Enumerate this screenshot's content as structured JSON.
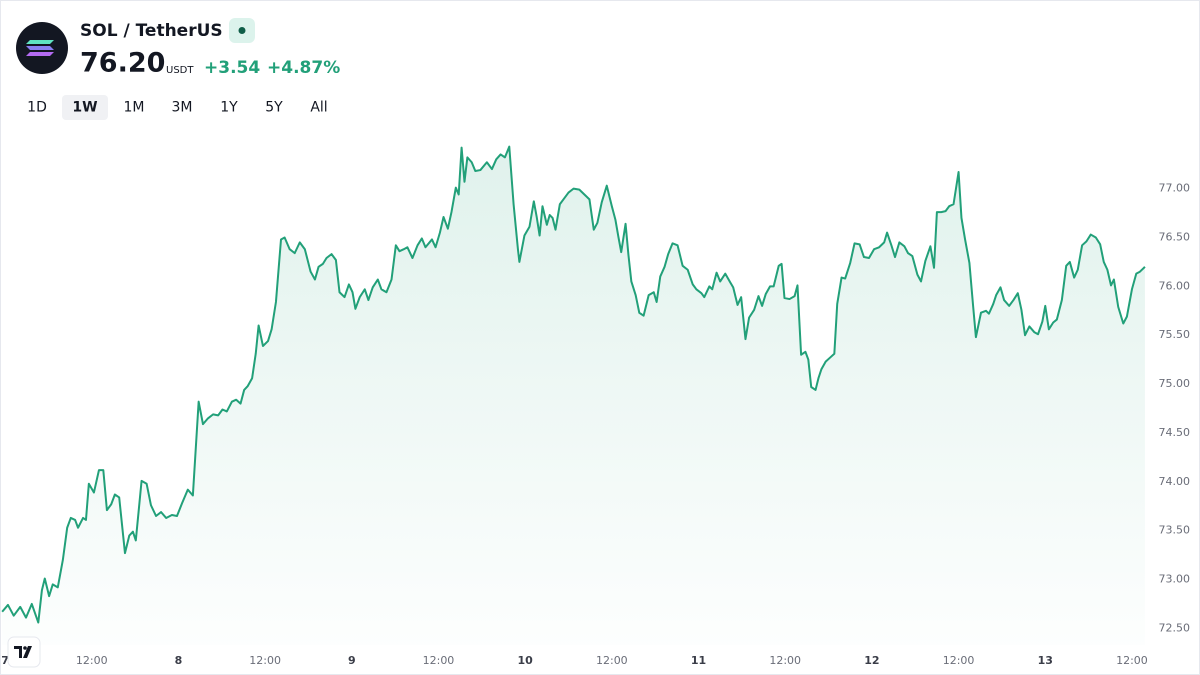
{
  "header": {
    "symbol": "SOL / TetherUS",
    "price": "76.20",
    "currency": "USDT",
    "change": "+3.54",
    "change_percent": "+4.87%"
  },
  "ranges": [
    "1D",
    "1W",
    "1M",
    "3M",
    "1Y",
    "5Y",
    "All"
  ],
  "selected_range": 1,
  "chart_data": {
    "type": "line",
    "x": [
      -0.4,
      0.4,
      1.2,
      2.1,
      2.9,
      3.7,
      4.6,
      5.1,
      5.5,
      6.1,
      6.6,
      7.3,
      8.0,
      8.6,
      9.1,
      9.7,
      10.1,
      10.8,
      11.2,
      11.6,
      12.3,
      13.0,
      13.6,
      14.1,
      14.7,
      15.2,
      15.8,
      16.6,
      17.2,
      17.7,
      18.1,
      18.9,
      19.6,
      20.2,
      20.9,
      21.6,
      22.3,
      23.1,
      23.8,
      24.5,
      25.3,
      26.0,
      26.8,
      27.4,
      28.1,
      28.8,
      29.5,
      30.1,
      30.7,
      31.4,
      32.0,
      32.6,
      33.1,
      33.6,
      34.2,
      34.7,
      35.1,
      35.7,
      36.4,
      36.9,
      37.5,
      38.2,
      38.7,
      39.4,
      40.1,
      40.8,
      41.5,
      42.3,
      42.9,
      43.4,
      44.0,
      44.5,
      45.2,
      45.8,
      46.3,
      47.0,
      47.6,
      48.1,
      48.5,
      49.1,
      49.8,
      50.3,
      50.9,
      51.6,
      52.1,
      52.8,
      53.5,
      54.1,
      54.6,
      55.2,
      55.7,
      56.4,
      57.1,
      57.7,
      58.2,
      59.1,
      59.6,
      60.2,
      60.7,
      61.3,
      61.8,
      62.4,
      62.8,
      63.2,
      63.6,
      64.0,
      64.6,
      65.1,
      65.8,
      66.7,
      67.4,
      68.0,
      68.6,
      69.2,
      69.8,
      70.4,
      71.0,
      71.2,
      71.9,
      72.6,
      73.2,
      73.6,
      74.0,
      74.4,
      75.0,
      75.4,
      75.8,
      76.2,
      76.8,
      77.5,
      78.0,
      78.7,
      79.5,
      80.2,
      80.9,
      81.5,
      82.0,
      82.6,
      83.3,
      84.0,
      84.5,
      84.9,
      85.3,
      85.9,
      86.3,
      86.7,
      87.3,
      87.8,
      88.4,
      89.1,
      89.8,
      90.2,
      90.7,
      91.3,
      91.8,
      92.4,
      93.1,
      93.8,
      94.5,
      95.2,
      95.7,
      96.4,
      96.8,
      97.5,
      97.9,
      98.5,
      99.0,
      99.7,
      100.4,
      100.8,
      101.4,
      101.9,
      102.5,
      103.0,
      103.7,
      104.3,
      104.8,
      105.3,
      105.9,
      106.4,
      107.1,
      107.5,
      107.9,
      108.6,
      109.3,
      109.7,
      110.2,
      110.8,
      111.2,
      111.6,
      112.2,
      112.6,
      113.0,
      113.6,
      114.2,
      114.8,
      115.2,
      115.8,
      116.3,
      117.0,
      117.6,
      118.3,
      118.9,
      119.6,
      120.3,
      121.0,
      121.7,
      122.1,
      122.7,
      123.2,
      123.8,
      124.5,
      125.0,
      125.6,
      126.3,
      126.8,
      127.4,
      128.1,
      128.6,
      129.0,
      129.6,
      130.2,
      130.7,
      131.3,
      132.0,
      132.4,
      132.9,
      133.5,
      134.0,
      134.4,
      135.1,
      135.8,
      136.2,
      136.8,
      137.2,
      137.8,
      138.3,
      139.0,
      139.6,
      140.2,
      140.7,
      141.2,
      141.8,
      142.5,
      143.0,
      143.6,
      144.0,
      144.5,
      145.1,
      145.6,
      146.3,
      146.9,
      147.4,
      148.0,
      148.5,
      149.1,
      149.7,
      150.3,
      151.0,
      151.6,
      152.1,
      152.6,
      153.1,
      153.5,
      154.1,
      154.8,
      155.3,
      156.0,
      156.6,
      157.1,
      157.8
    ],
    "series": [
      {
        "color": "#22a079",
        "values": [
          72.67,
          72.74,
          72.63,
          72.72,
          72.61,
          72.75,
          72.56,
          72.89,
          73.01,
          72.83,
          72.95,
          72.92,
          73.2,
          73.53,
          73.63,
          73.61,
          73.53,
          73.63,
          73.61,
          73.98,
          73.89,
          74.12,
          74.12,
          73.71,
          73.77,
          73.87,
          73.84,
          73.27,
          73.45,
          73.49,
          73.4,
          74.01,
          73.98,
          73.76,
          73.65,
          73.69,
          73.63,
          73.66,
          73.65,
          73.78,
          73.92,
          73.86,
          74.82,
          74.59,
          74.65,
          74.69,
          74.68,
          74.74,
          74.72,
          74.82,
          74.84,
          74.8,
          74.94,
          74.98,
          75.06,
          75.31,
          75.6,
          75.39,
          75.44,
          75.56,
          75.84,
          76.48,
          76.5,
          76.38,
          76.34,
          76.45,
          76.38,
          76.15,
          76.07,
          76.2,
          76.23,
          76.29,
          76.33,
          76.27,
          75.94,
          75.89,
          76.02,
          75.94,
          75.77,
          75.89,
          75.97,
          75.86,
          75.99,
          76.07,
          75.97,
          75.94,
          76.07,
          76.42,
          76.36,
          76.38,
          76.4,
          76.29,
          76.42,
          76.49,
          76.4,
          76.48,
          76.4,
          76.55,
          76.71,
          76.59,
          76.76,
          77.01,
          76.94,
          77.42,
          77.07,
          77.32,
          77.27,
          77.18,
          77.19,
          77.27,
          77.2,
          77.3,
          77.35,
          77.32,
          77.43,
          76.84,
          76.38,
          76.25,
          76.52,
          76.61,
          76.87,
          76.71,
          76.52,
          76.82,
          76.63,
          76.73,
          76.7,
          76.58,
          76.84,
          76.91,
          76.96,
          77.0,
          76.99,
          76.94,
          76.89,
          76.58,
          76.65,
          76.86,
          77.03,
          76.82,
          76.68,
          76.51,
          76.35,
          76.64,
          76.32,
          76.05,
          75.91,
          75.73,
          75.7,
          75.91,
          75.94,
          75.84,
          76.1,
          76.2,
          76.33,
          76.44,
          76.42,
          76.21,
          76.17,
          76.02,
          75.97,
          75.93,
          75.89,
          76.0,
          75.97,
          76.14,
          76.05,
          76.13,
          76.04,
          75.99,
          75.81,
          75.89,
          75.46,
          75.68,
          75.76,
          75.9,
          75.8,
          75.92,
          76.0,
          76.0,
          76.21,
          76.23,
          75.88,
          75.87,
          75.9,
          76.01,
          75.3,
          75.33,
          75.25,
          74.97,
          74.94,
          75.06,
          75.15,
          75.23,
          75.27,
          75.31,
          75.82,
          76.09,
          76.08,
          76.24,
          76.44,
          76.43,
          76.3,
          76.29,
          76.38,
          76.4,
          76.45,
          76.55,
          76.42,
          76.3,
          76.45,
          76.41,
          76.34,
          76.31,
          76.12,
          76.05,
          76.26,
          76.41,
          76.19,
          76.76,
          76.76,
          76.77,
          76.82,
          76.84,
          77.17,
          76.7,
          76.48,
          76.24,
          75.81,
          75.48,
          75.73,
          75.75,
          75.72,
          75.82,
          75.91,
          75.99,
          75.86,
          75.8,
          75.86,
          75.93,
          75.76,
          75.5,
          75.59,
          75.53,
          75.51,
          75.64,
          75.8,
          75.56,
          75.63,
          75.66,
          75.86,
          76.21,
          76.25,
          76.09,
          76.17,
          76.42,
          76.46,
          76.53,
          76.5,
          76.43,
          76.25,
          76.17,
          76.01,
          76.07,
          75.79,
          75.62,
          75.69,
          75.97,
          76.13,
          76.15,
          76.2
        ]
      }
    ],
    "xlim": [
      -0.7,
      158.5
    ],
    "xticks": [
      {
        "value": 0,
        "label": "7"
      },
      {
        "value": 12,
        "label": "12:00"
      },
      {
        "value": 24,
        "label": "8"
      },
      {
        "value": 36,
        "label": "12:00"
      },
      {
        "value": 48,
        "label": "9"
      },
      {
        "value": 60,
        "label": "12:00"
      },
      {
        "value": 72,
        "label": "10"
      },
      {
        "value": 84,
        "label": "12:00"
      },
      {
        "value": 96,
        "label": "11"
      },
      {
        "value": 108,
        "label": "12:00"
      },
      {
        "value": 120,
        "label": "12"
      },
      {
        "value": 132,
        "label": "12:00"
      },
      {
        "value": 144,
        "label": "13"
      },
      {
        "value": 156,
        "label": "12:00"
      }
    ],
    "ylim": [
      72.33,
      77.6
    ],
    "yticks": [
      {
        "value": 72.5,
        "label": "72.50"
      },
      {
        "value": 73,
        "label": "73.00"
      },
      {
        "value": 73.5,
        "label": "73.50"
      },
      {
        "value": 74,
        "label": "74.00"
      },
      {
        "value": 74.5,
        "label": "74.50"
      },
      {
        "value": 75,
        "label": "75.00"
      },
      {
        "value": 75.5,
        "label": "75.50"
      },
      {
        "value": 76,
        "label": "76.00"
      },
      {
        "value": 76.5,
        "label": "76.50"
      },
      {
        "value": 77,
        "label": "77.00"
      }
    ],
    "grid": false
  }
}
